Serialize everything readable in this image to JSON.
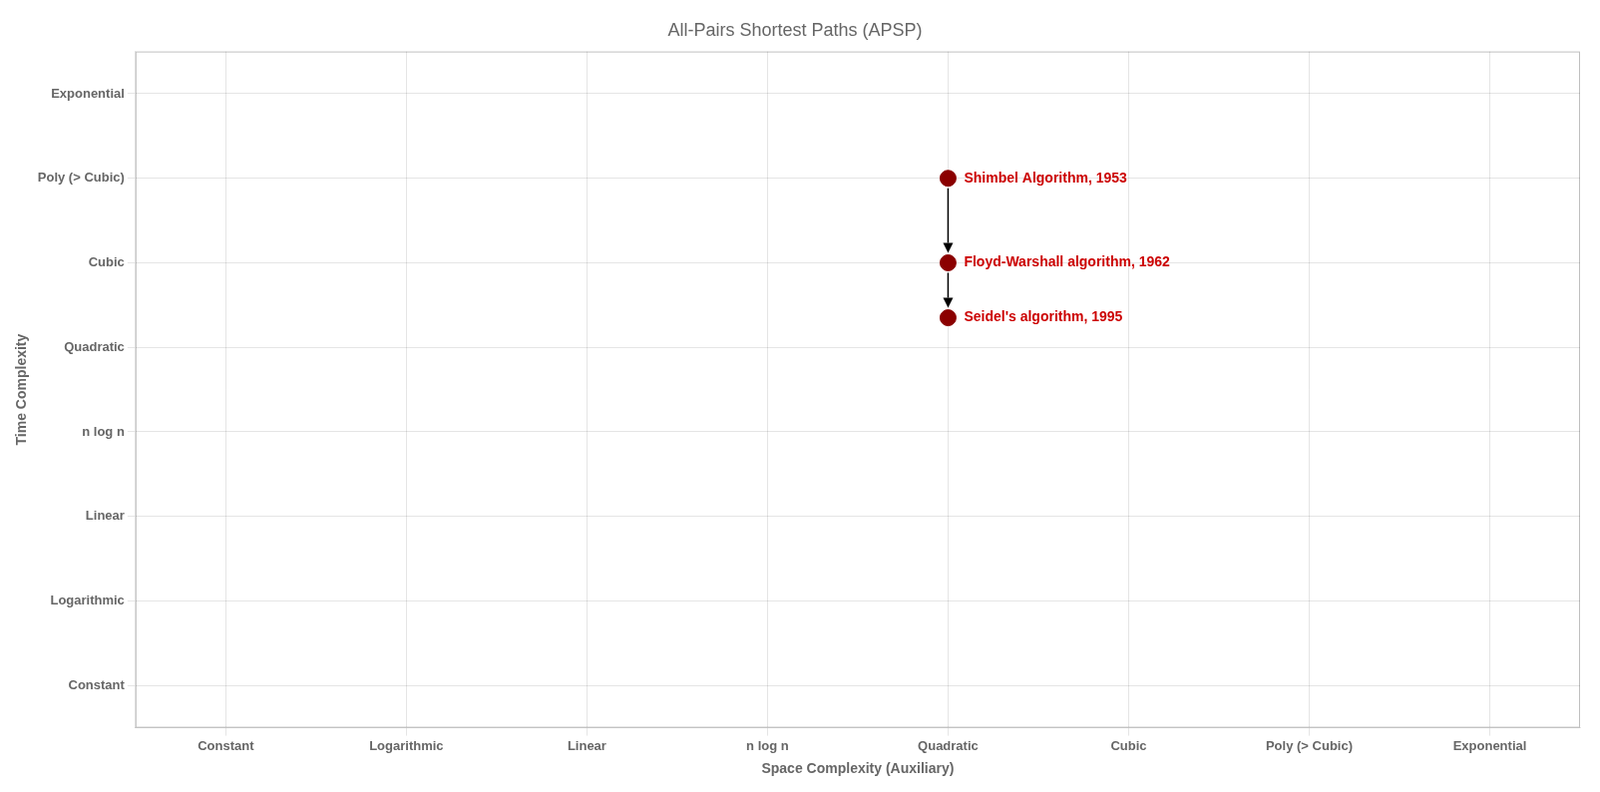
{
  "chart_data": {
    "type": "scatter",
    "title": "All-Pairs Shortest Paths (APSP)",
    "x_label": "Space Complexity (Auxiliary)",
    "y_label": "Time Complexity",
    "x": [
      4,
      4,
      4
    ],
    "values": [
      6,
      5,
      4.35
    ],
    "color": "#8B0000",
    "xlim": [
      -0.5,
      7.5
    ],
    "xticks": [
      {
        "value": 0,
        "label": "Constant"
      },
      {
        "value": 1,
        "label": "Logarithmic"
      },
      {
        "value": 2,
        "label": "Linear"
      },
      {
        "value": 3,
        "label": "n log n"
      },
      {
        "value": 4,
        "label": "Quadratic"
      },
      {
        "value": 5,
        "label": "Cubic"
      },
      {
        "value": 6,
        "label": "Poly (> Cubic)"
      },
      {
        "value": 7,
        "label": "Exponential"
      }
    ],
    "ylim": [
      -0.5,
      7.5
    ],
    "yticks": [
      {
        "value": 0,
        "label": "Constant"
      },
      {
        "value": 1,
        "label": "Logarithmic"
      },
      {
        "value": 2,
        "label": "Linear"
      },
      {
        "value": 3,
        "label": "n log n"
      },
      {
        "value": 4,
        "label": "Quadratic"
      },
      {
        "value": 5,
        "label": "Cubic"
      },
      {
        "value": 6,
        "label": "Poly (> Cubic)"
      },
      {
        "value": 7,
        "label": "Exponential"
      }
    ],
    "annotations": [
      {
        "text": "Shimbel Algorithm, 1953",
        "x": 4,
        "y": 6,
        "color": "#CC0000"
      },
      {
        "text": "Floyd-Warshall algorithm, 1962",
        "x": 4,
        "y": 5,
        "color": "#CC0000"
      },
      {
        "text": "Seidel's algorithm, 1995",
        "x": 4,
        "y": 4.35,
        "color": "#CC0000"
      }
    ],
    "arrows": [
      {
        "x": 4,
        "y_start": 6,
        "y_end": 5,
        "color": "#000000"
      },
      {
        "x": 4,
        "y_start": 5,
        "y_end": 4.35,
        "color": "#000000"
      }
    ],
    "grid": true
  }
}
